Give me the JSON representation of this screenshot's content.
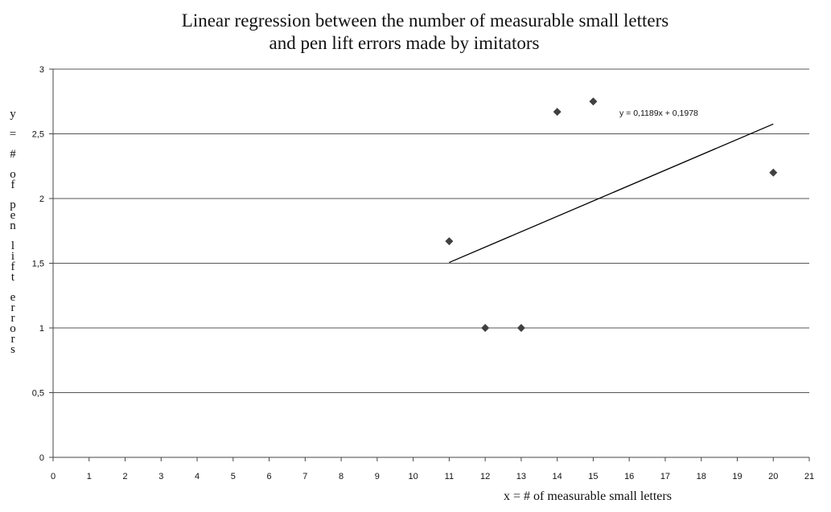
{
  "chart_data": {
    "type": "scatter",
    "title_line1": "Linear regression  between the number of measurable small letters",
    "title_line2": "and pen lift errors made by imitators",
    "xlabel": "x  =  # of measurable small letters",
    "ylabel": "y  =  #  of  pen  lift  errors",
    "xlim": [
      0,
      21
    ],
    "ylim": [
      0,
      3
    ],
    "x_ticks": [
      0,
      1,
      2,
      3,
      4,
      5,
      6,
      7,
      8,
      9,
      10,
      11,
      12,
      13,
      14,
      15,
      16,
      17,
      18,
      19,
      20,
      21
    ],
    "y_ticks": [
      0,
      0.5,
      1,
      1.5,
      2,
      2.5,
      3
    ],
    "y_tick_labels": [
      "0",
      "0,5",
      "1",
      "1,5",
      "2",
      "2,5",
      "3"
    ],
    "grid": "horizontal",
    "points": [
      {
        "x": 11,
        "y": 1.67
      },
      {
        "x": 12,
        "y": 1.0
      },
      {
        "x": 13,
        "y": 1.0
      },
      {
        "x": 14,
        "y": 2.67
      },
      {
        "x": 15,
        "y": 2.75
      },
      {
        "x": 20,
        "y": 2.2
      }
    ],
    "marker_color": "#404040",
    "trendline": {
      "slope": 0.1189,
      "intercept": 0.1978,
      "x_range": [
        11,
        20
      ],
      "equation_label": "y = 0,1189x  + 0,1978"
    }
  }
}
